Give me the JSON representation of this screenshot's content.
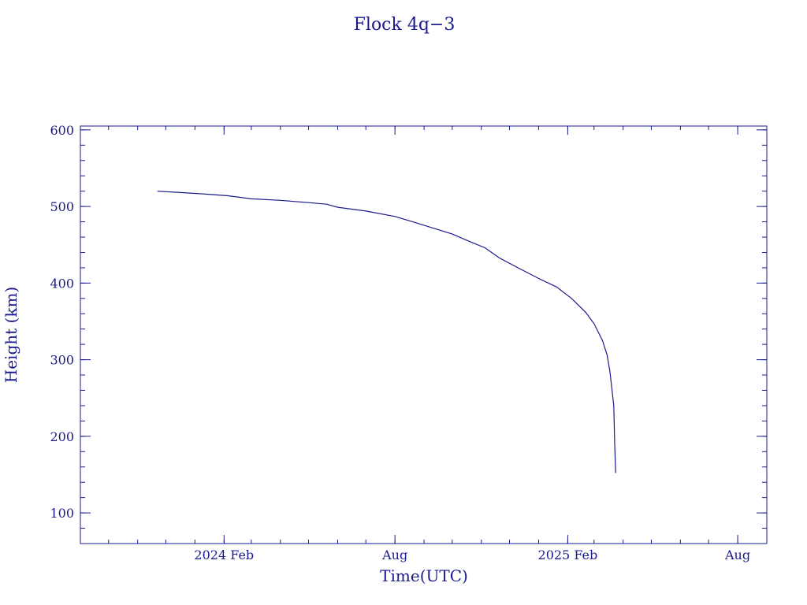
{
  "chart_data": {
    "type": "line",
    "title": "Flock 4q−3",
    "xlabel": "Time(UTC)",
    "ylabel": "Height (km)",
    "x_range": [
      "2023-09-01",
      "2025-09-01"
    ],
    "ylim": [
      60,
      605
    ],
    "x_ticks": [
      {
        "date": "2024-02-01",
        "label": "2024 Feb"
      },
      {
        "date": "2024-08-01",
        "label": "Aug"
      },
      {
        "date": "2025-02-01",
        "label": "2025 Feb"
      },
      {
        "date": "2025-08-01",
        "label": "Aug"
      }
    ],
    "y_ticks": [
      100,
      200,
      300,
      400,
      500,
      600
    ],
    "grid": false,
    "color": "#1a1a8c",
    "series": [
      {
        "points": [
          [
            "2023-11-22",
            520
          ],
          [
            "2023-12-20",
            518
          ],
          [
            "2024-01-15",
            516
          ],
          [
            "2024-02-05",
            514
          ],
          [
            "2024-03-01",
            510
          ],
          [
            "2024-04-01",
            508
          ],
          [
            "2024-05-01",
            505
          ],
          [
            "2024-05-20",
            503
          ],
          [
            "2024-06-01",
            499
          ],
          [
            "2024-07-01",
            494
          ],
          [
            "2024-08-01",
            487
          ],
          [
            "2024-08-20",
            480
          ],
          [
            "2024-09-10",
            472
          ],
          [
            "2024-10-01",
            464
          ],
          [
            "2024-10-20",
            454
          ],
          [
            "2024-11-05",
            446
          ],
          [
            "2024-11-20",
            433
          ],
          [
            "2024-12-10",
            420
          ],
          [
            "2025-01-01",
            406
          ],
          [
            "2025-01-20",
            395
          ],
          [
            "2025-02-05",
            380
          ],
          [
            "2025-02-20",
            362
          ],
          [
            "2025-03-01",
            347
          ],
          [
            "2025-03-10",
            325
          ],
          [
            "2025-03-15",
            306
          ],
          [
            "2025-03-18",
            284
          ],
          [
            "2025-03-20",
            262
          ],
          [
            "2025-03-22",
            240
          ],
          [
            "2025-03-23",
            190
          ],
          [
            "2025-03-24",
            152
          ]
        ]
      }
    ]
  }
}
